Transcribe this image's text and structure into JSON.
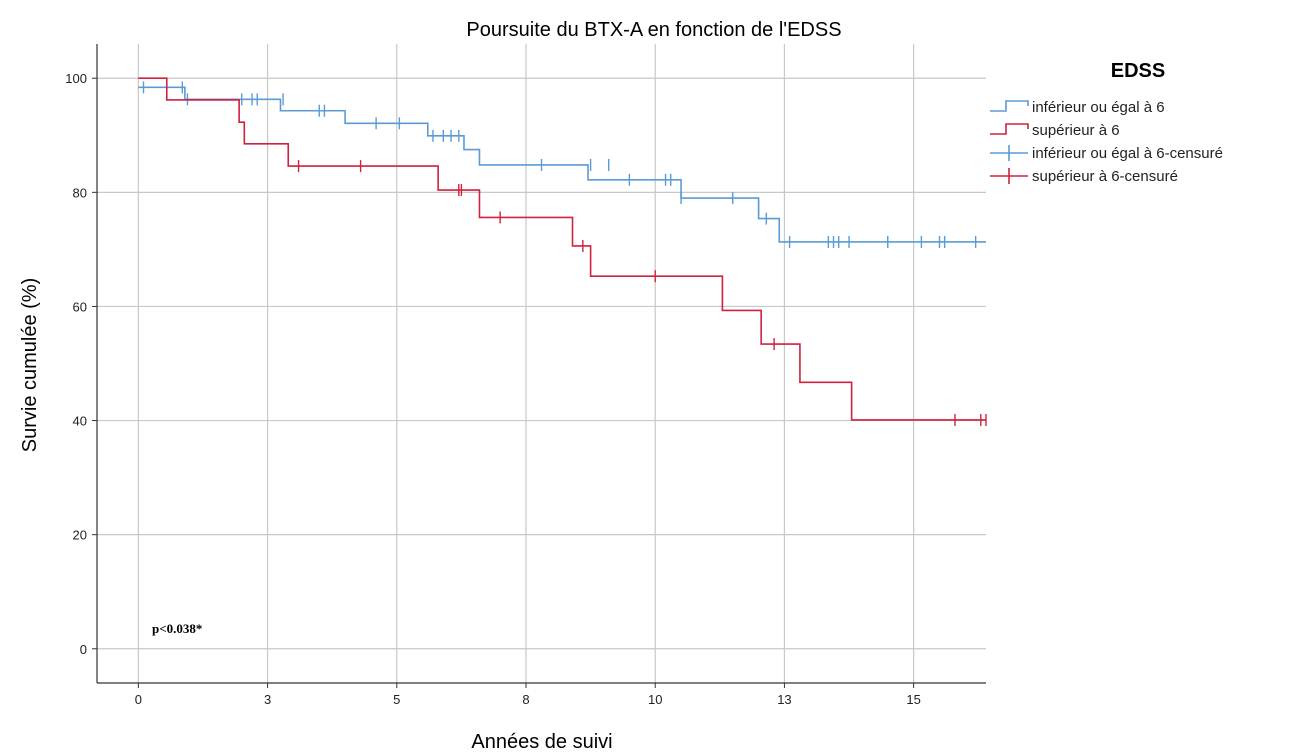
{
  "chart_data": {
    "type": "line",
    "subtype": "kaplan-meier",
    "title": "Poursuite du BTX-A en fonction de l'EDSS",
    "xlabel": "Années de suivi",
    "ylabel": "Survie cumulée (%)",
    "xlim": [
      -0.8,
      16.4
    ],
    "ylim": [
      -6,
      106
    ],
    "xticks": [
      0,
      2.5,
      5,
      7.5,
      10,
      12.5,
      15
    ],
    "xtick_labels": [
      "0",
      "3",
      "5",
      "8",
      "10",
      "13",
      "15"
    ],
    "yticks": [
      0,
      20,
      40,
      60,
      80,
      100
    ],
    "ytick_labels": [
      "0",
      "20",
      "40",
      "60",
      "80",
      "100"
    ],
    "grid": true,
    "legend_title": "EDSS",
    "legend_position": "right",
    "annotation": "p<0.038*",
    "series": [
      {
        "name": "inférieur ou égal à 6",
        "color": "#5b9bd5",
        "steps": [
          [
            0,
            98.4
          ],
          [
            0.9,
            96.3
          ],
          [
            2.75,
            94.3
          ],
          [
            4,
            92.1
          ],
          [
            5.6,
            89.9
          ],
          [
            6.3,
            87.5
          ],
          [
            6.6,
            84.8
          ],
          [
            8.7,
            82.2
          ],
          [
            10.5,
            79
          ],
          [
            12,
            75.4
          ],
          [
            12.4,
            71.3
          ]
        ],
        "x_end": 16.4,
        "censored": [
          [
            0.1,
            98.4
          ],
          [
            0.85,
            98.4
          ],
          [
            0.95,
            96.3
          ],
          [
            2,
            96.3
          ],
          [
            2.2,
            96.3
          ],
          [
            2.3,
            96.3
          ],
          [
            2.8,
            96.3
          ],
          [
            3.5,
            94.3
          ],
          [
            3.6,
            94.3
          ],
          [
            4.6,
            92.1
          ],
          [
            5.05,
            92.1
          ],
          [
            5.7,
            89.9
          ],
          [
            5.9,
            89.9
          ],
          [
            6.05,
            89.9
          ],
          [
            6.2,
            89.9
          ],
          [
            7.8,
            84.8
          ],
          [
            8.75,
            84.8
          ],
          [
            9.1,
            84.8
          ],
          [
            9.5,
            82.2
          ],
          [
            10.2,
            82.2
          ],
          [
            10.3,
            82.2
          ],
          [
            10.5,
            79
          ],
          [
            11.5,
            79
          ],
          [
            12.15,
            75.4
          ],
          [
            12.6,
            71.3
          ],
          [
            13.35,
            71.3
          ],
          [
            13.45,
            71.3
          ],
          [
            13.55,
            71.3
          ],
          [
            13.75,
            71.3
          ],
          [
            14.5,
            71.3
          ],
          [
            14.5,
            71.3
          ],
          [
            15.15,
            71.3
          ],
          [
            15.5,
            71.3
          ],
          [
            15.6,
            71.3
          ],
          [
            16.2,
            71.3
          ],
          [
            16.45,
            71.3
          ],
          [
            16.65,
            71.3
          ],
          [
            17.2,
            71.3
          ]
        ],
        "y_end": 71.3
      },
      {
        "name": "supérieur à 6",
        "color": "#d0213d",
        "steps": [
          [
            0,
            100
          ],
          [
            0.55,
            96.2
          ],
          [
            1.95,
            92.3
          ],
          [
            2.05,
            88.5
          ],
          [
            2.9,
            84.6
          ],
          [
            5.8,
            80.4
          ],
          [
            6.6,
            75.6
          ],
          [
            8.4,
            70.6
          ],
          [
            8.75,
            65.3
          ],
          [
            11.3,
            59.3
          ],
          [
            12.05,
            53.4
          ],
          [
            12.8,
            46.7
          ],
          [
            13.8,
            40.1
          ]
        ],
        "x_end": 16.4,
        "censored": [
          [
            3.1,
            84.6
          ],
          [
            4.3,
            84.6
          ],
          [
            6.2,
            80.4
          ],
          [
            6.25,
            80.4
          ],
          [
            7.0,
            75.6
          ],
          [
            8.6,
            70.6
          ],
          [
            10.0,
            65.3
          ],
          [
            12.3,
            53.4
          ],
          [
            15.8,
            40.1
          ],
          [
            16.3,
            40.1
          ],
          [
            16.4,
            40.1
          ]
        ],
        "y_end": 40.1
      }
    ],
    "legend_entries": [
      {
        "label": "inférieur ou égal à 6",
        "symbol": "step",
        "color": "#5b9bd5"
      },
      {
        "label": "supérieur à 6",
        "symbol": "step",
        "color": "#d0213d"
      },
      {
        "label": "inférieur ou égal à 6-censuré",
        "symbol": "cross",
        "color": "#5b9bd5"
      },
      {
        "label": "supérieur à 6-censuré",
        "symbol": "cross",
        "color": "#d0213d"
      }
    ]
  }
}
